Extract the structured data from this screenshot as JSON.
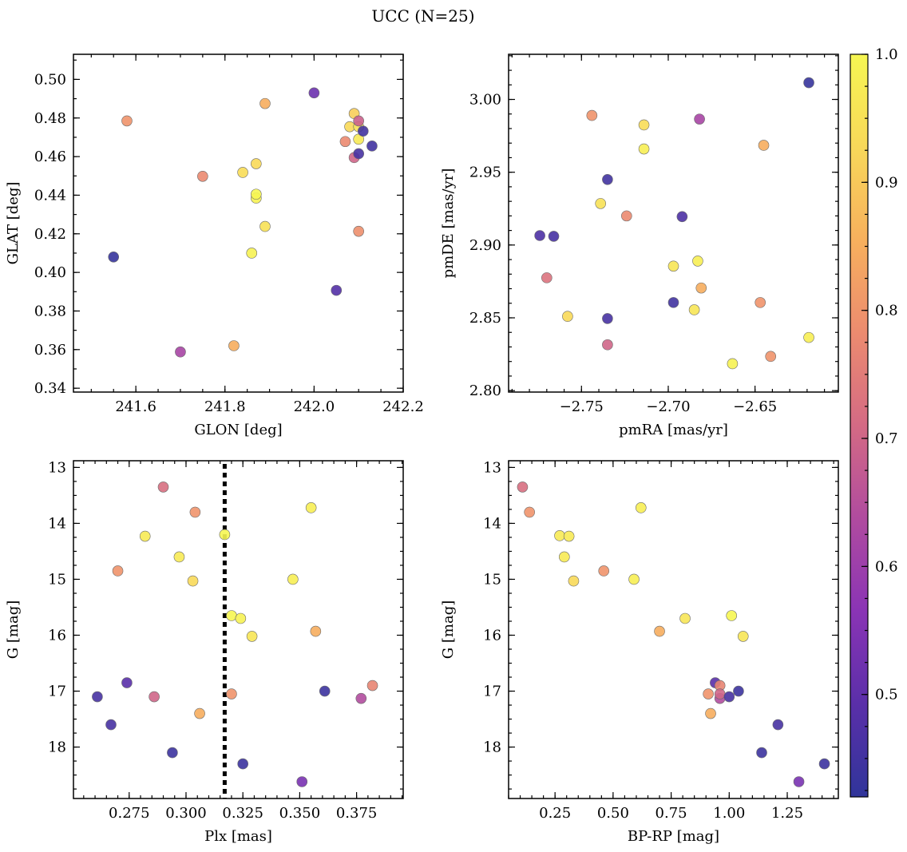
{
  "title": "UCC (N=25)",
  "colormap": {
    "name": "plasma",
    "stops": [
      "#30359a",
      "#5a2fa9",
      "#8a34b5",
      "#b04b9f",
      "#d46a84",
      "#ec8b6f",
      "#f7b05d",
      "#f8d859",
      "#f6f652"
    ],
    "range": [
      0.42,
      1.0
    ],
    "ticks": [
      0.5,
      0.6,
      0.7,
      0.8,
      0.9,
      1.0
    ],
    "tick_labels": [
      "0.5",
      "0.6",
      "0.7",
      "0.8",
      "0.9",
      "1.0"
    ]
  },
  "chart_data": [
    {
      "type": "scatter",
      "id": "glon-glat",
      "xlabel": "GLON [deg]",
      "ylabel": "GLAT [deg]",
      "xlim": [
        241.46,
        242.2
      ],
      "ylim": [
        0.338,
        0.513
      ],
      "y_inverted": false,
      "xticks": [
        241.6,
        241.8,
        242.0,
        242.2
      ],
      "xtick_labels": [
        "241.6",
        "241.8",
        "242.0",
        "242.2"
      ],
      "yticks": [
        0.34,
        0.36,
        0.38,
        0.4,
        0.42,
        0.44,
        0.46,
        0.48,
        0.5
      ],
      "ytick_labels": [
        "0.34",
        "0.36",
        "0.38",
        "0.40",
        "0.42",
        "0.44",
        "0.46",
        "0.48",
        "0.50"
      ],
      "x": [
        241.58,
        241.55,
        241.7,
        241.75,
        241.82,
        241.84,
        241.86,
        241.87,
        241.87,
        241.87,
        241.89,
        241.89,
        242.0,
        242.05,
        242.07,
        242.08,
        242.09,
        242.09,
        242.1,
        242.1,
        242.1,
        242.1,
        242.1,
        242.11,
        242.13
      ],
      "y": [
        0.4785,
        0.408,
        0.3588,
        0.4498,
        0.362,
        0.4518,
        0.41,
        0.4563,
        0.4385,
        0.4405,
        0.4238,
        0.4875,
        0.493,
        0.3907,
        0.4678,
        0.4755,
        0.4823,
        0.4595,
        0.4755,
        0.469,
        0.4785,
        0.4615,
        0.4213,
        0.4732,
        0.4655
      ],
      "c": [
        0.8,
        0.43,
        0.62,
        0.78,
        0.85,
        0.94,
        0.99,
        0.93,
        0.99,
        1.0,
        0.95,
        0.85,
        0.52,
        0.48,
        0.78,
        0.93,
        0.91,
        0.7,
        0.95,
        0.97,
        0.69,
        0.46,
        0.79,
        0.45,
        0.45
      ]
    },
    {
      "type": "scatter",
      "id": "pmra-pmde",
      "xlabel": "pmRA [mas/yr]",
      "ylabel": "pmDE [mas/yr]",
      "xlim": [
        -2.792,
        -2.602
      ],
      "ylim": [
        2.799,
        3.031
      ],
      "y_inverted": false,
      "xticks": [
        -2.75,
        -2.7,
        -2.65
      ],
      "xtick_labels": [
        "−2.75",
        "−2.70",
        "−2.65"
      ],
      "yticks": [
        2.8,
        2.85,
        2.9,
        2.95,
        3.0
      ],
      "ytick_labels": [
        "2.80",
        "2.85",
        "2.90",
        "2.95",
        "3.00"
      ],
      "x": [
        -2.774,
        -2.766,
        -2.77,
        -2.758,
        -2.744,
        -2.739,
        -2.735,
        -2.735,
        -2.735,
        -2.724,
        -2.714,
        -2.714,
        -2.697,
        -2.697,
        -2.692,
        -2.685,
        -2.683,
        -2.682,
        -2.681,
        -2.663,
        -2.647,
        -2.645,
        -2.641,
        -2.619,
        -2.619
      ],
      "y": [
        2.9065,
        2.906,
        2.8775,
        2.851,
        2.989,
        2.9285,
        2.945,
        2.8495,
        2.8315,
        2.92,
        2.9825,
        2.966,
        2.8855,
        2.8605,
        2.9195,
        2.8555,
        2.889,
        2.9865,
        2.8705,
        2.8185,
        2.8605,
        2.9685,
        2.8235,
        3.0115,
        2.8365
      ],
      "c": [
        0.47,
        0.46,
        0.73,
        0.93,
        0.8,
        0.95,
        0.45,
        0.46,
        0.7,
        0.78,
        0.94,
        0.98,
        0.96,
        0.45,
        0.47,
        0.96,
        0.98,
        0.62,
        0.85,
        0.99,
        0.8,
        0.85,
        0.8,
        0.43,
        0.98
      ]
    },
    {
      "type": "scatter",
      "id": "plx-g",
      "xlabel": "Plx [mas]",
      "ylabel": "G [mag]",
      "xlim": [
        0.2505,
        0.3955
      ],
      "ylim": [
        12.88,
        18.92
      ],
      "y_inverted": true,
      "xticks": [
        0.275,
        0.3,
        0.325,
        0.35,
        0.375
      ],
      "xtick_labels": [
        "0.275",
        "0.300",
        "0.325",
        "0.350",
        "0.375"
      ],
      "yticks": [
        13,
        14,
        15,
        16,
        17,
        18
      ],
      "ytick_labels": [
        "13",
        "14",
        "15",
        "16",
        "17",
        "18"
      ],
      "reference_x": 0.317,
      "x": [
        0.261,
        0.267,
        0.27,
        0.274,
        0.282,
        0.286,
        0.29,
        0.294,
        0.297,
        0.303,
        0.304,
        0.306,
        0.317,
        0.32,
        0.32,
        0.324,
        0.325,
        0.329,
        0.347,
        0.351,
        0.355,
        0.357,
        0.361,
        0.377,
        0.382
      ],
      "y": [
        17.1,
        17.6,
        14.85,
        16.85,
        14.23,
        17.1,
        13.35,
        18.1,
        14.6,
        15.03,
        13.8,
        17.4,
        14.2,
        15.65,
        17.05,
        15.7,
        18.3,
        16.02,
        15.0,
        18.62,
        13.72,
        15.93,
        17.0,
        17.13,
        16.9
      ],
      "c": [
        0.46,
        0.46,
        0.8,
        0.49,
        0.97,
        0.7,
        0.72,
        0.44,
        0.97,
        0.93,
        0.8,
        0.85,
        1.0,
        1.0,
        0.8,
        0.99,
        0.44,
        0.96,
        0.98,
        0.54,
        0.98,
        0.85,
        0.44,
        0.64,
        0.77
      ]
    },
    {
      "type": "scatter",
      "id": "bprp-g",
      "xlabel": "BP-RP [mag]",
      "ylabel": "G [mag]",
      "xlim": [
        0.05,
        1.47
      ],
      "ylim": [
        12.88,
        18.92
      ],
      "y_inverted": true,
      "xticks": [
        0.25,
        0.5,
        0.75,
        1.0,
        1.25
      ],
      "xtick_labels": [
        "0.25",
        "0.50",
        "0.75",
        "1.00",
        "1.25"
      ],
      "yticks": [
        13,
        14,
        15,
        16,
        17,
        18
      ],
      "ytick_labels": [
        "13",
        "14",
        "15",
        "16",
        "17",
        "18"
      ],
      "x": [
        0.11,
        0.14,
        0.27,
        0.29,
        0.31,
        0.33,
        0.46,
        0.59,
        0.62,
        0.7,
        0.81,
        0.91,
        0.92,
        0.94,
        0.96,
        0.96,
        0.96,
        1.0,
        1.01,
        1.04,
        1.06,
        1.14,
        1.21,
        1.3,
        1.41
      ],
      "y": [
        13.35,
        13.8,
        14.22,
        14.6,
        14.23,
        15.03,
        14.85,
        15.0,
        13.72,
        15.93,
        15.7,
        17.05,
        17.4,
        16.85,
        16.9,
        17.13,
        17.05,
        17.1,
        15.65,
        17.0,
        16.02,
        18.1,
        17.6,
        18.62,
        18.3
      ],
      "c": [
        0.72,
        0.8,
        0.97,
        0.97,
        0.97,
        0.93,
        0.8,
        0.98,
        0.98,
        0.85,
        0.96,
        0.8,
        0.85,
        0.49,
        0.77,
        0.64,
        0.7,
        0.46,
        1.0,
        0.44,
        0.96,
        0.44,
        0.46,
        0.54,
        0.44
      ]
    }
  ]
}
